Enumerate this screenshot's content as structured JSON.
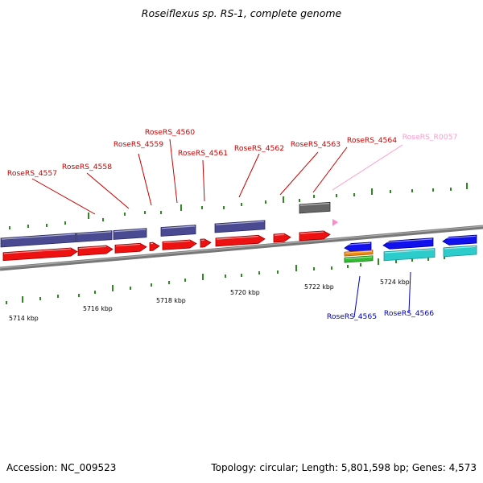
{
  "title": "Roseiflexus sp. RS-1, complete genome",
  "footer": {
    "accession": "Accession: NC_009523",
    "summary": "Topology: circular; Length: 5,801,598 bp; Genes: 4,573"
  },
  "colors": {
    "tick": "#2d8a1e",
    "backbone": "#777777",
    "gene_forward": "#ee1111",
    "gene_reverse": "#1111ee",
    "cds_forward": "#4a4a92",
    "cds_reverse": "#2ccccc",
    "rna_gene": "#ff88cc",
    "rna_feature": "#666666",
    "orange": "#ee8811",
    "green": "#33bb33",
    "label_forward": "#cc0000",
    "label_reverse": "#0000bb",
    "label_rna": "#ff99cc"
  },
  "axis": {
    "unit": "kbp",
    "tick_labels": [
      {
        "value": 5714,
        "text": "5714 kbp"
      },
      {
        "value": 5716,
        "text": "5716 kbp"
      },
      {
        "value": 5718,
        "text": "5718 kbp"
      },
      {
        "value": 5720,
        "text": "5720 kbp"
      },
      {
        "value": 5722,
        "text": "5722 kbp"
      },
      {
        "value": 5724,
        "text": "5724 kbp"
      }
    ]
  },
  "genes": [
    {
      "id": "RoseRS_4557",
      "strand": "forward",
      "type": "gene"
    },
    {
      "id": "RoseRS_4558",
      "strand": "forward",
      "type": "gene"
    },
    {
      "id": "RoseRS_4559",
      "strand": "forward",
      "type": "gene"
    },
    {
      "id": "RoseRS_4560",
      "strand": "forward",
      "type": "gene"
    },
    {
      "id": "RoseRS_4561",
      "strand": "forward",
      "type": "gene"
    },
    {
      "id": "RoseRS_4562",
      "strand": "forward",
      "type": "gene"
    },
    {
      "id": "RoseRS_4563",
      "strand": "forward",
      "type": "gene"
    },
    {
      "id": "RoseRS_4564",
      "strand": "forward",
      "type": "gene"
    },
    {
      "id": "RoseRS_R0057",
      "strand": "forward",
      "type": "rna"
    },
    {
      "id": "RoseRS_4565",
      "strand": "reverse",
      "type": "gene"
    },
    {
      "id": "RoseRS_4566",
      "strand": "reverse",
      "type": "gene"
    }
  ]
}
